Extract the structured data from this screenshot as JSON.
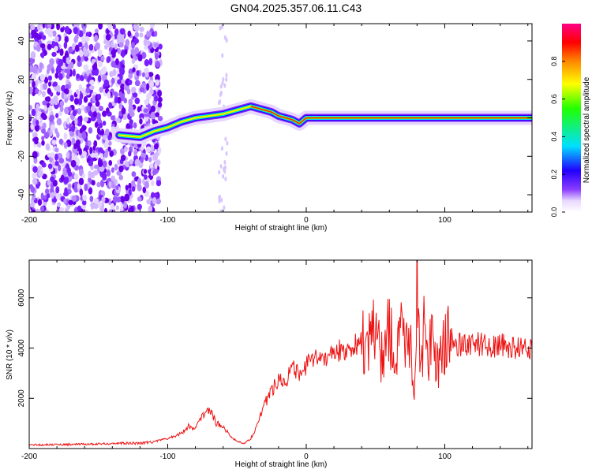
{
  "title": "GN04.2025.357.06.11.C43",
  "chart_data": [
    {
      "type": "heatmap",
      "title": "GN04.2025.357.06.11.C43",
      "xlabel": "Height of straight line (km)",
      "ylabel": "Frequency (Hz)",
      "xlim": [
        -200,
        163
      ],
      "ylim": [
        -49,
        49
      ],
      "x_ticks": [
        -200,
        -100,
        0,
        100
      ],
      "y_ticks": [
        -40,
        -20,
        0,
        20,
        40
      ],
      "ridge": {
        "x": [
          -135,
          -120,
          -110,
          -100,
          -90,
          -80,
          -70,
          -60,
          -50,
          -45,
          -40,
          -35,
          -30,
          -25,
          -20,
          -15,
          -10,
          -5,
          0,
          20,
          40,
          60,
          80,
          100,
          163
        ],
        "y": [
          -9,
          -10,
          -7,
          -5,
          -2,
          0,
          1,
          2,
          4,
          5,
          6,
          5,
          4,
          3,
          1,
          0,
          -1,
          -3,
          0,
          0,
          0,
          0,
          0,
          0,
          0
        ]
      },
      "colorbar": {
        "label": "Normalized spectral amplitude",
        "range": [
          0,
          1
        ],
        "ticks": [
          "0.0",
          "0.2",
          "0.4",
          "0.6",
          "0.8"
        ]
      }
    },
    {
      "type": "line",
      "xlabel": "Height of straight line (km)",
      "ylabel": "SNR (10 * v/v)",
      "xlim": [
        -200,
        163
      ],
      "ylim": [
        0,
        7500
      ],
      "x_ticks": [
        -200,
        -100,
        0,
        100
      ],
      "y_ticks": [
        2000,
        4000,
        6000
      ],
      "series": [
        {
          "name": "SNR",
          "color": "#ee1111",
          "x": [
            -200,
            -180,
            -160,
            -140,
            -120,
            -110,
            -100,
            -95,
            -90,
            -85,
            -80,
            -75,
            -70,
            -65,
            -60,
            -55,
            -50,
            -45,
            -40,
            -35,
            -30,
            -25,
            -20,
            -15,
            -10,
            -5,
            0,
            5,
            10,
            20,
            30,
            40,
            50,
            55,
            60,
            65,
            70,
            75,
            78,
            80,
            82,
            85,
            90,
            95,
            100,
            105,
            110,
            120,
            130,
            140,
            150,
            163
          ],
          "y": [
            150,
            160,
            170,
            200,
            220,
            280,
            400,
            500,
            600,
            900,
            800,
            1300,
            1600,
            1000,
            900,
            500,
            300,
            200,
            400,
            1000,
            1800,
            2300,
            2800,
            2700,
            3200,
            2900,
            3300,
            3500,
            3600,
            3800,
            4000,
            4200,
            4500,
            3800,
            4800,
            3300,
            5000,
            4200,
            2500,
            6800,
            3600,
            4500,
            4000,
            3600,
            4200,
            4300,
            4150,
            4200,
            4100,
            4100,
            4000,
            4000
          ]
        }
      ]
    }
  ]
}
